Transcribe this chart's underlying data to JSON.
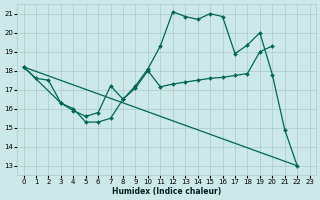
{
  "xlabel": "Humidex (Indice chaleur)",
  "bg_color": "#cce8e8",
  "grid_color": "#aacccc",
  "line_color": "#006655",
  "xlim": [
    -0.5,
    23.5
  ],
  "ylim": [
    12.5,
    21.5
  ],
  "xticks": [
    0,
    1,
    2,
    3,
    4,
    5,
    6,
    7,
    8,
    9,
    10,
    11,
    12,
    13,
    14,
    15,
    16,
    17,
    18,
    19,
    20,
    21,
    22,
    23
  ],
  "yticks": [
    13,
    14,
    15,
    16,
    17,
    18,
    19,
    20,
    21
  ],
  "curve1_x": [
    0,
    1,
    2,
    3,
    4,
    5,
    6,
    7,
    8,
    9,
    10,
    11,
    12,
    13,
    14,
    15,
    16,
    17,
    18,
    19,
    20,
    21,
    22
  ],
  "curve1_y": [
    18.2,
    17.6,
    17.5,
    16.3,
    16.0,
    15.3,
    15.3,
    15.5,
    16.5,
    17.2,
    18.1,
    19.3,
    21.1,
    20.85,
    20.7,
    21.0,
    20.85,
    18.9,
    19.35,
    20.0,
    17.8,
    14.9,
    13.0
  ],
  "curve2_x": [
    0,
    3,
    4,
    5,
    6,
    7,
    8,
    9,
    10,
    11,
    12,
    13,
    14,
    15,
    16,
    17,
    18,
    19,
    20
  ],
  "curve2_y": [
    18.2,
    16.3,
    15.9,
    15.6,
    15.8,
    17.2,
    16.5,
    17.1,
    18.0,
    17.15,
    17.3,
    17.4,
    17.5,
    17.6,
    17.65,
    17.75,
    17.85,
    19.0,
    19.3
  ],
  "curve3_x": [
    0,
    22
  ],
  "curve3_y": [
    18.2,
    13.0
  ]
}
